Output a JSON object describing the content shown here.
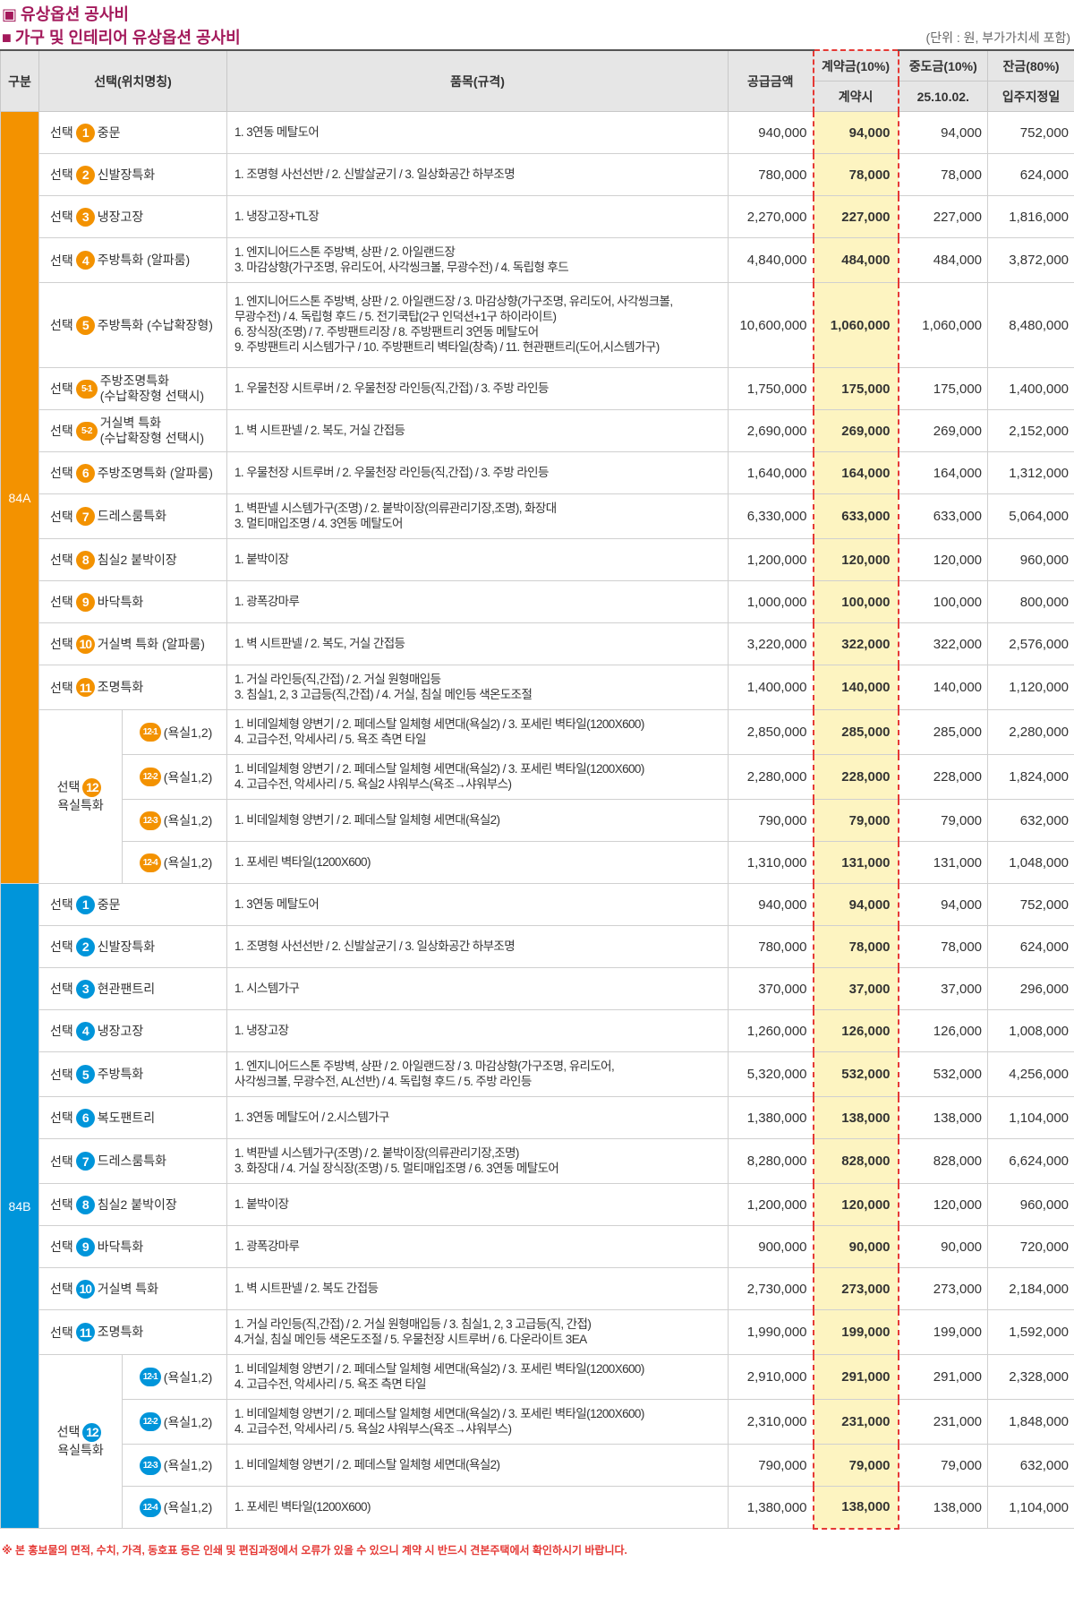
{
  "header": {
    "section_title": "유상옵션 공사비",
    "table_title": "가구 및 인테리어 유상옵션 공사비",
    "unit_note": "(단위 : 원, 부가가치세 포함)"
  },
  "table": {
    "columns": {
      "type": "구분",
      "option": "선택(위치명칭)",
      "item": "품목(규격)",
      "supply": "공급금액",
      "contract": "계약금(10%)",
      "contract_sub": "계약시",
      "middle": "중도금(10%)",
      "middle_sub": "25.10.02.",
      "balance": "잔금(80%)",
      "balance_sub": "입주지정일"
    },
    "groups": [
      {
        "type": "84A",
        "rows": [
          {
            "prefix": "선택",
            "no": "1",
            "name": [
              "중문"
            ],
            "item": [
              "1. 3연동 메탈도어"
            ],
            "supply": "940,000",
            "contract": "94,000",
            "middle": "94,000",
            "balance": "752,000"
          },
          {
            "prefix": "선택",
            "no": "2",
            "name": [
              "신발장특화"
            ],
            "item": [
              "1. 조명형 사선선반 / 2. 신발살균기 / 3. 일상화공간 하부조명"
            ],
            "supply": "780,000",
            "contract": "78,000",
            "middle": "78,000",
            "balance": "624,000"
          },
          {
            "prefix": "선택",
            "no": "3",
            "name": [
              "냉장고장"
            ],
            "item": [
              "1. 냉장고장+TL장"
            ],
            "supply": "2,270,000",
            "contract": "227,000",
            "middle": "227,000",
            "balance": "1,816,000"
          },
          {
            "prefix": "선택",
            "no": "4",
            "name": [
              "주방특화 (알파룸)"
            ],
            "item": [
              "1. 엔지니어드스톤 주방벽, 상판 / 2. 아일랜드장",
              "3. 마감상향(가구조명, 유리도어, 사각씽크볼, 무광수전) / 4. 독립형 후드"
            ],
            "supply": "4,840,000",
            "contract": "484,000",
            "middle": "484,000",
            "balance": "3,872,000"
          },
          {
            "prefix": "선택",
            "no": "5",
            "name": [
              "주방특화 (수납확장형)"
            ],
            "item": [
              "1. 엔지니어드스톤 주방벽, 상판 / 2. 아일랜드장 / 3. 마감상향(가구조명, 유리도어, 사각씽크볼,",
              "무광수전) / 4. 독립형 후드 / 5. 전기쿡탑(2구 인덕션+1구 하이라이트)",
              "6. 장식장(조명) / 7. 주방팬트리장 / 8. 주방팬트리 3연동 메탈도어",
              "9. 주방팬트리 시스템가구 / 10. 주방팬트리 벽타일(창측) / 11. 현관팬트리(도어,시스템가구)"
            ],
            "supply": "10,600,000",
            "contract": "1,060,000",
            "middle": "1,060,000",
            "balance": "8,480,000"
          },
          {
            "prefix": "선택",
            "no": "5-1",
            "name": [
              "주방조명특화",
              "(수납확장형 선택시)"
            ],
            "item": [
              "1. 우물천장 시트루버 / 2. 우물천장 라인등(직,간접) / 3. 주방 라인등"
            ],
            "supply": "1,750,000",
            "contract": "175,000",
            "middle": "175,000",
            "balance": "1,400,000"
          },
          {
            "prefix": "선택",
            "no": "5-2",
            "name": [
              "거실벽 특화",
              "(수납확장형 선택시)"
            ],
            "item": [
              "1. 벽 시트판넬 / 2. 복도, 거실 간접등"
            ],
            "supply": "2,690,000",
            "contract": "269,000",
            "middle": "269,000",
            "balance": "2,152,000"
          },
          {
            "prefix": "선택",
            "no": "6",
            "name": [
              "주방조명특화 (알파룸)"
            ],
            "item": [
              "1. 우물천장 시트루버 / 2. 우물천장 라인등(직,간접) / 3. 주방 라인등"
            ],
            "supply": "1,640,000",
            "contract": "164,000",
            "middle": "164,000",
            "balance": "1,312,000"
          },
          {
            "prefix": "선택",
            "no": "7",
            "name": [
              "드레스룸특화"
            ],
            "item": [
              "1. 벽판넬 시스템가구(조명) / 2. 붙박이장(의류관리기장,조명), 화장대",
              "3. 멀티매입조명 / 4. 3연동 메탈도어"
            ],
            "supply": "6,330,000",
            "contract": "633,000",
            "middle": "633,000",
            "balance": "5,064,000"
          },
          {
            "prefix": "선택",
            "no": "8",
            "name": [
              "침실2 붙박이장"
            ],
            "item": [
              "1. 붙박이장"
            ],
            "supply": "1,200,000",
            "contract": "120,000",
            "middle": "120,000",
            "balance": "960,000"
          },
          {
            "prefix": "선택",
            "no": "9",
            "name": [
              "바닥특화"
            ],
            "item": [
              "1. 광폭강마루"
            ],
            "supply": "1,000,000",
            "contract": "100,000",
            "middle": "100,000",
            "balance": "800,000"
          },
          {
            "prefix": "선택",
            "no": "10",
            "name": [
              "거실벽 특화 (알파룸)"
            ],
            "item": [
              "1. 벽 시트판넬 / 2. 복도, 거실 간접등"
            ],
            "supply": "3,220,000",
            "contract": "322,000",
            "middle": "322,000",
            "balance": "2,576,000"
          },
          {
            "prefix": "선택",
            "no": "11",
            "name": [
              "조명특화"
            ],
            "item": [
              "1. 거실 라인등(직,간접) / 2. 거실 원형매입등",
              "3. 침실1, 2, 3 고급등(직,간접) / 4. 거실, 침실 메인등 색온도조절"
            ],
            "supply": "1,400,000",
            "contract": "140,000",
            "middle": "140,000",
            "balance": "1,120,000"
          },
          {
            "prefix": "선택",
            "no": "12",
            "name": [
              "욕실특화"
            ],
            "subs": [
              {
                "no": "12-1",
                "name": "(욕실1,2)",
                "item": [
                  "1. 비데일체형 양변기 / 2. 페데스탈 일체형 세면대(욕실2) / 3. 포세린 벽타일(1200X600)",
                  "4. 고급수전, 악세사리 / 5. 욕조 측면 타일"
                ],
                "supply": "2,850,000",
                "contract": "285,000",
                "middle": "285,000",
                "balance": "2,280,000"
              },
              {
                "no": "12-2",
                "name": "(욕실1,2)",
                "item": [
                  "1. 비데일체형 양변기 / 2. 페데스탈 일체형 세면대(욕실2) / 3. 포세린 벽타일(1200X600)",
                  "4. 고급수전, 악세사리 / 5. 욕실2 샤워부스(욕조→샤워부스)"
                ],
                "supply": "2,280,000",
                "contract": "228,000",
                "middle": "228,000",
                "balance": "1,824,000"
              },
              {
                "no": "12-3",
                "name": "(욕실1,2)",
                "item": [
                  "1. 비데일체형 양변기 / 2. 페데스탈 일체형 세면대(욕실2)"
                ],
                "supply": "790,000",
                "contract": "79,000",
                "middle": "79,000",
                "balance": "632,000"
              },
              {
                "no": "12-4",
                "name": "(욕실1,2)",
                "item": [
                  "1. 포세린 벽타일(1200X600)"
                ],
                "supply": "1,310,000",
                "contract": "131,000",
                "middle": "131,000",
                "balance": "1,048,000"
              }
            ]
          }
        ]
      },
      {
        "type": "84B",
        "rows": [
          {
            "prefix": "선택",
            "no": "1",
            "name": [
              "중문"
            ],
            "item": [
              "1. 3연동 메탈도어"
            ],
            "supply": "940,000",
            "contract": "94,000",
            "middle": "94,000",
            "balance": "752,000"
          },
          {
            "prefix": "선택",
            "no": "2",
            "name": [
              "신발장특화"
            ],
            "item": [
              "1. 조명형 사선선반 / 2. 신발살균기 / 3. 일상화공간 하부조명"
            ],
            "supply": "780,000",
            "contract": "78,000",
            "middle": "78,000",
            "balance": "624,000"
          },
          {
            "prefix": "선택",
            "no": "3",
            "name": [
              "현관팬트리"
            ],
            "item": [
              "1. 시스템가구"
            ],
            "supply": "370,000",
            "contract": "37,000",
            "middle": "37,000",
            "balance": "296,000"
          },
          {
            "prefix": "선택",
            "no": "4",
            "name": [
              "냉장고장"
            ],
            "item": [
              "1. 냉장고장"
            ],
            "supply": "1,260,000",
            "contract": "126,000",
            "middle": "126,000",
            "balance": "1,008,000"
          },
          {
            "prefix": "선택",
            "no": "5",
            "name": [
              "주방특화"
            ],
            "item": [
              "1. 엔지니어드스톤 주방벽, 상판 / 2. 아일랜드장  / 3. 마감상향(가구조명, 유리도어,",
              "사각씽크볼, 무광수전, AL선반) / 4. 독립형 후드 / 5. 주방 라인등"
            ],
            "supply": "5,320,000",
            "contract": "532,000",
            "middle": "532,000",
            "balance": "4,256,000"
          },
          {
            "prefix": "선택",
            "no": "6",
            "name": [
              "복도팬트리"
            ],
            "item": [
              "1. 3연동 메탈도어 / 2.시스템가구"
            ],
            "supply": "1,380,000",
            "contract": "138,000",
            "middle": "138,000",
            "balance": "1,104,000"
          },
          {
            "prefix": "선택",
            "no": "7",
            "name": [
              "드레스룸특화"
            ],
            "item": [
              "1. 벽판넬 시스템가구(조명) / 2. 붙박이장(의류관리기장,조명)",
              "3. 화장대 / 4. 거실 장식장(조명) / 5. 멀티매입조명 / 6. 3연동 메탈도어"
            ],
            "supply": "8,280,000",
            "contract": "828,000",
            "middle": "828,000",
            "balance": "6,624,000"
          },
          {
            "prefix": "선택",
            "no": "8",
            "name": [
              "침실2 붙박이장"
            ],
            "item": [
              "1. 붙박이장"
            ],
            "supply": "1,200,000",
            "contract": "120,000",
            "middle": "120,000",
            "balance": "960,000"
          },
          {
            "prefix": "선택",
            "no": "9",
            "name": [
              "바닥특화"
            ],
            "item": [
              "1. 광폭강마루"
            ],
            "supply": "900,000",
            "contract": "90,000",
            "middle": "90,000",
            "balance": "720,000"
          },
          {
            "prefix": "선택",
            "no": "10",
            "name": [
              "거실벽 특화"
            ],
            "item": [
              "1. 벽 시트판넬 / 2. 복도 간접등"
            ],
            "supply": "2,730,000",
            "contract": "273,000",
            "middle": "273,000",
            "balance": "2,184,000"
          },
          {
            "prefix": "선택",
            "no": "11",
            "name": [
              "조명특화"
            ],
            "item": [
              "1. 거실 라인등(직,간접) / 2. 거실 원형매입등 / 3. 침실1, 2, 3 고급등(직, 간접)",
              "4.거실, 침실 메인등 색온도조절 / 5. 우물천장 시트루버 / 6. 다운라이트 3EA"
            ],
            "supply": "1,990,000",
            "contract": "199,000",
            "middle": "199,000",
            "balance": "1,592,000"
          },
          {
            "prefix": "선택",
            "no": "12",
            "name": [
              "욕실특화"
            ],
            "subs": [
              {
                "no": "12-1",
                "name": "(욕실1,2)",
                "item": [
                  "1. 비데일체형 양변기 / 2. 페데스탈 일체형 세면대(욕실2) / 3. 포세린 벽타일(1200X600)",
                  "4. 고급수전, 악세사리 / 5. 욕조 측면 타일"
                ],
                "supply": "2,910,000",
                "contract": "291,000",
                "middle": "291,000",
                "balance": "2,328,000"
              },
              {
                "no": "12-2",
                "name": "(욕실1,2)",
                "item": [
                  "1. 비데일체형 양변기 / 2. 페데스탈 일체형 세면대(욕실2) / 3. 포세린 벽타일(1200X600)",
                  "4. 고급수전, 악세사리 / 5. 욕실2 샤워부스(욕조→샤워부스)"
                ],
                "supply": "2,310,000",
                "contract": "231,000",
                "middle": "231,000",
                "balance": "1,848,000"
              },
              {
                "no": "12-3",
                "name": "(욕실1,2)",
                "item": [
                  "1. 비데일체형 양변기 / 2. 페데스탈 일체형 세면대(욕실2)"
                ],
                "supply": "790,000",
                "contract": "79,000",
                "middle": "79,000",
                "balance": "632,000"
              },
              {
                "no": "12-4",
                "name": "(욕실1,2)",
                "item": [
                  "1. 포세린 벽타일(1200X600)"
                ],
                "supply": "1,380,000",
                "contract": "138,000",
                "middle": "138,000",
                "balance": "1,104,000"
              }
            ]
          }
        ]
      }
    ]
  },
  "footnote": "※ 본 홍보물의 면적, 수치, 가격, 동호표 등은 인쇄 및 편집과정에서 오류가 있을 수 있으니 계약 시 반드시 견본주택에서 확인하시기 바랍니다."
}
